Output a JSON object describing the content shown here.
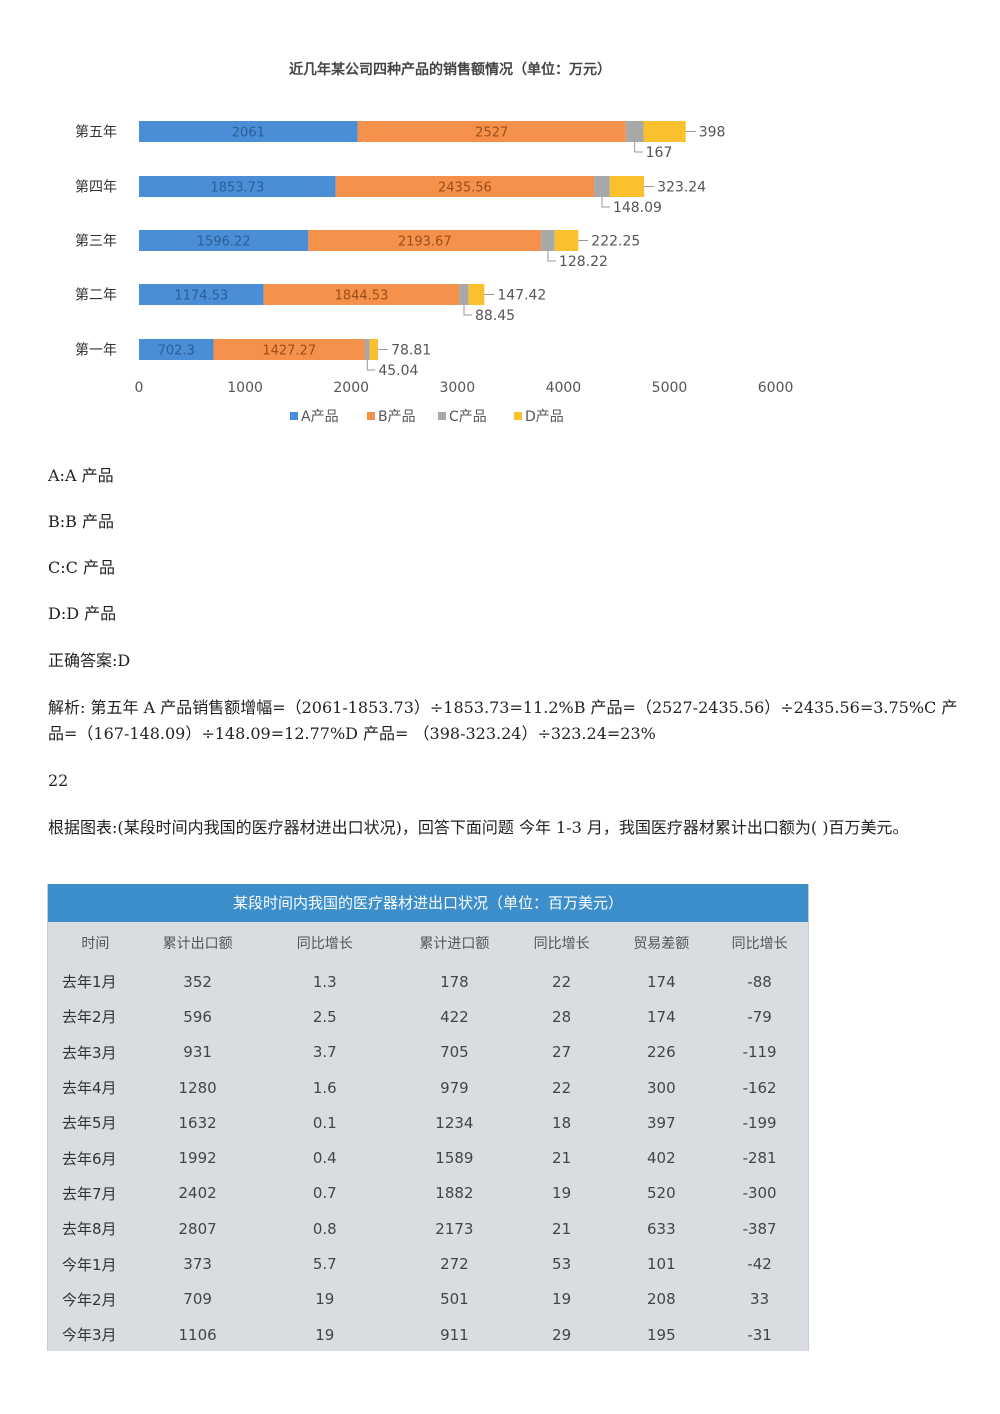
{
  "chart_data": {
    "type": "bar",
    "orientation": "horizontal",
    "stacked": true,
    "title": "近几年某公司四种产品的销售额情况（单位：万元）",
    "categories": [
      "第五年",
      "第四年",
      "第三年",
      "第二年",
      "第一年"
    ],
    "series": [
      {
        "name": "A产品",
        "color": "#4a8fd6",
        "values": [
          2061,
          1853.73,
          1596.22,
          1174.53,
          702.3
        ]
      },
      {
        "name": "B产品",
        "color": "#f5914a",
        "values": [
          2527,
          2435.56,
          2193.67,
          1844.53,
          1427.27
        ]
      },
      {
        "name": "C产品",
        "color": "#a8a8a8",
        "values": [
          167,
          148.09,
          128.22,
          88.45,
          45.04
        ]
      },
      {
        "name": "D产品",
        "color": "#fbc02d",
        "values": [
          398,
          323.24,
          222.25,
          147.42,
          78.81
        ]
      }
    ],
    "labels": {
      "A": [
        "2061",
        "1853.73",
        "1596.22",
        "1174.53",
        "702.3"
      ],
      "B": [
        "2527",
        "2435.56",
        "2193.67",
        "1844.53",
        "1427.27"
      ],
      "C": [
        "167",
        "148.09",
        "128.22",
        "88.45",
        "45.04"
      ],
      "D": [
        "398",
        "323.24",
        "222.25",
        "147.42",
        "78.81"
      ]
    },
    "xlim": [
      0,
      6000
    ],
    "xticks": [
      "0",
      "1000",
      "2000",
      "3000",
      "4000",
      "5000",
      "6000"
    ],
    "legend": "bottom",
    "grid": false
  },
  "options": [
    "A:A 产品",
    "B:B 产品",
    "C:C 产品",
    "D:D 产品"
  ],
  "answer": "正确答案:D",
  "analysis": "解析: 第五年 A 产品销售额增幅=（2061-1853.73）÷1853.73=11.2%B 产品=（2527-2435.56）÷2435.56=3.75%C 产品=（167-148.09）÷148.09=12.77%D 产品= （398-323.24）÷323.24=23%",
  "question_number": "22",
  "question_text": "根据图表:(某段时间内我国的医疗器材进出口状况)，回答下面问题 今年 1-3 月，我国医疗器材累计出口额为( )百万美元。",
  "table": {
    "title": "某段时间内我国的医疗器材进出口状况（单位：百万美元）",
    "headers": [
      "时间",
      "累计出口额",
      "同比增长",
      "累计进口额",
      "同比增长",
      "贸易差额",
      "同比增长"
    ],
    "rows": [
      [
        "去年1月",
        "352",
        "1.3",
        "178",
        "22",
        "174",
        "-88"
      ],
      [
        "去年2月",
        "596",
        "2.5",
        "422",
        "28",
        "174",
        "-79"
      ],
      [
        "去年3月",
        "931",
        "3.7",
        "705",
        "27",
        "226",
        "-119"
      ],
      [
        "去年4月",
        "1280",
        "1.6",
        "979",
        "22",
        "300",
        "-162"
      ],
      [
        "去年5月",
        "1632",
        "0.1",
        "1234",
        "18",
        "397",
        "-199"
      ],
      [
        "去年6月",
        "1992",
        "0.4",
        "1589",
        "21",
        "402",
        "-281"
      ],
      [
        "去年7月",
        "2402",
        "0.7",
        "1882",
        "19",
        "520",
        "-300"
      ],
      [
        "去年8月",
        "2807",
        "0.8",
        "2173",
        "21",
        "633",
        "-387"
      ],
      [
        "今年1月",
        "373",
        "5.7",
        "272",
        "53",
        "101",
        "-42"
      ],
      [
        "今年2月",
        "709",
        "19",
        "501",
        "19",
        "208",
        "33"
      ],
      [
        "今年3月",
        "1106",
        "19",
        "911",
        "29",
        "195",
        "-31"
      ]
    ]
  }
}
